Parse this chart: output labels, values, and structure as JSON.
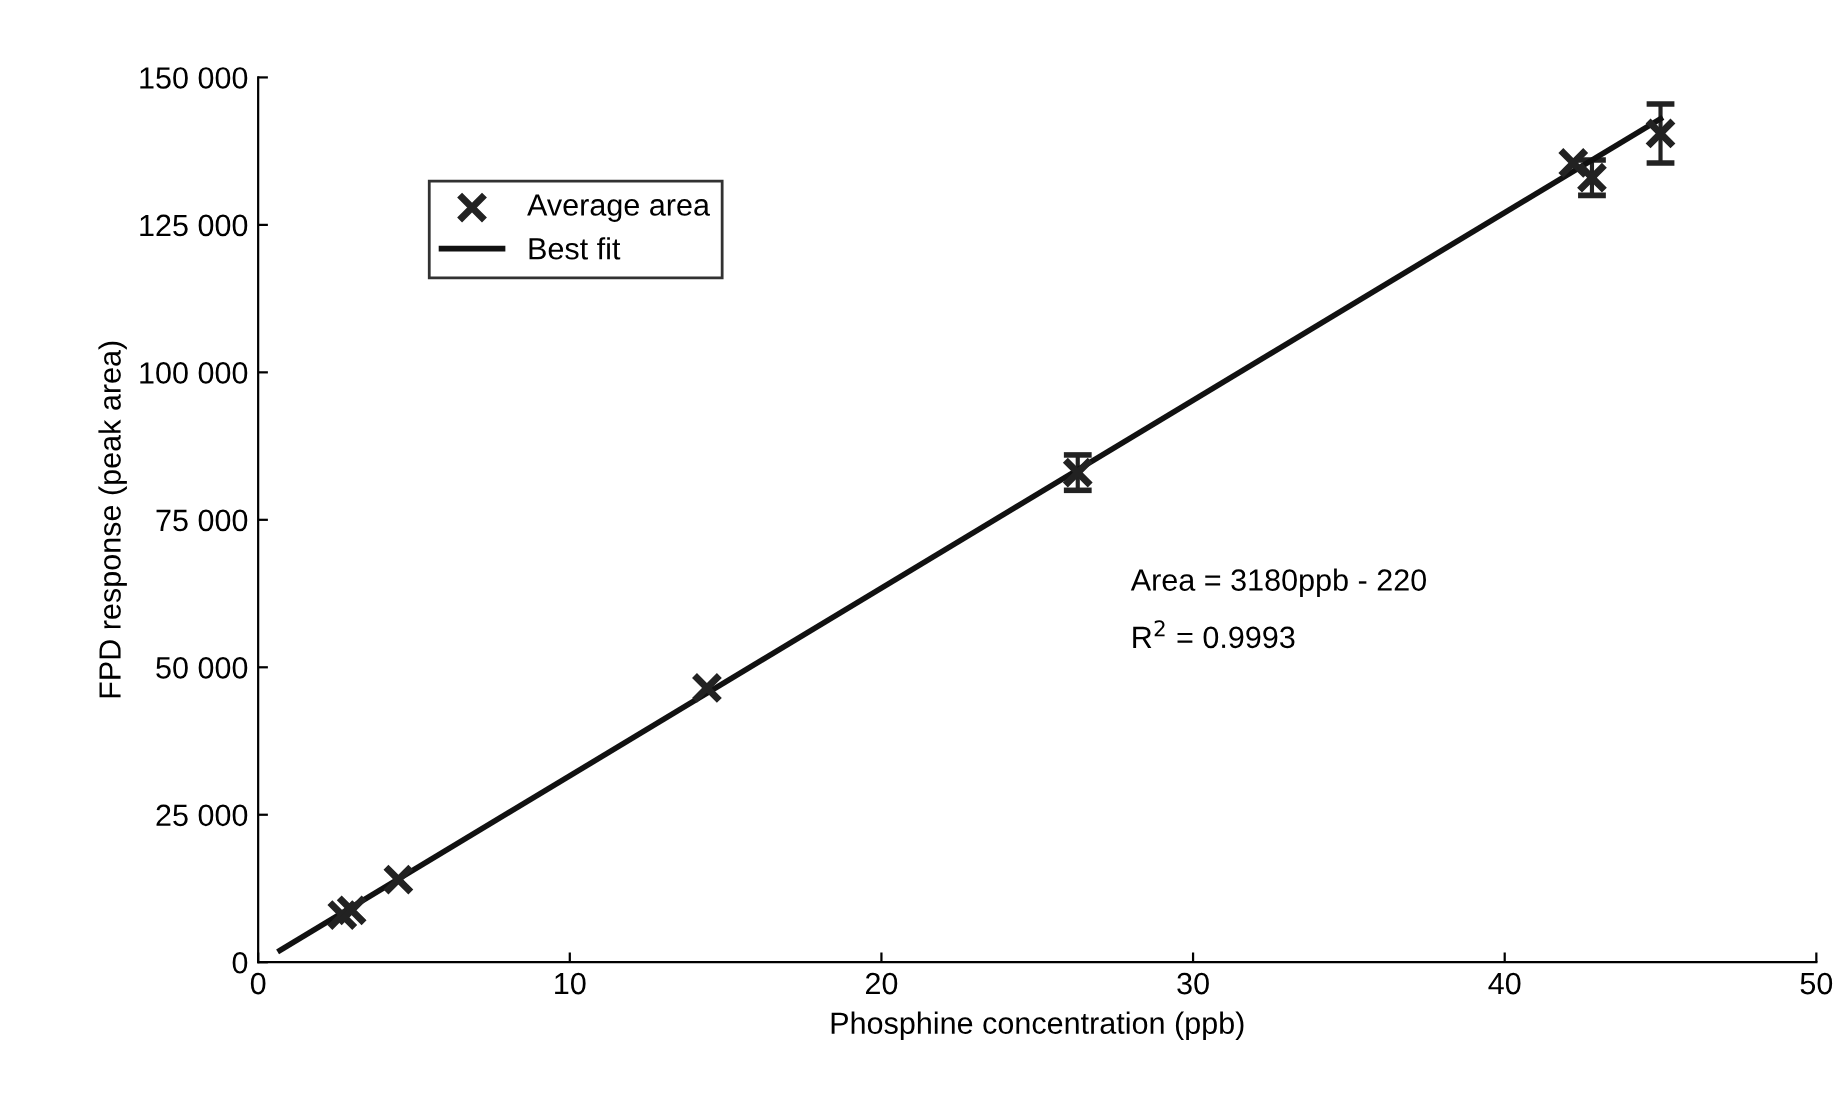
{
  "chart_data": {
    "type": "scatter",
    "xlabel": "Phosphine concentration (ppb)",
    "ylabel": "FPD response (peak area)",
    "xlim": [
      0,
      50
    ],
    "xticks": [
      0,
      10,
      20,
      30,
      40,
      50
    ],
    "ylim": [
      0,
      150000
    ],
    "yticks": [
      0,
      {
        "value": 25000,
        "label": "25 000"
      },
      {
        "value": 50000,
        "label": "50 000"
      },
      {
        "value": 75000,
        "label": "75 000"
      },
      {
        "value": 100000,
        "label": "100 000"
      },
      {
        "value": 125000,
        "label": "125 000"
      },
      {
        "value": 150000,
        "label": "150 000"
      }
    ],
    "series": [
      {
        "name": "Average area",
        "marker": "cross",
        "color": "#222222",
        "x": [
          2.7,
          3.0,
          4.5,
          14.4,
          26.3,
          42.2,
          42.8,
          45.0
        ],
        "values": [
          8000,
          8800,
          14000,
          46500,
          83000,
          135500,
          133000,
          140500
        ],
        "errors": [
          null,
          null,
          null,
          null,
          3000,
          null,
          3000,
          5000
        ]
      },
      {
        "name": "Best fit",
        "type": "line",
        "marker": "none",
        "color": "#111111",
        "x": [
          0.7,
          45.0
        ],
        "values": [
          2000,
          143000
        ]
      }
    ],
    "annotations": [
      "Area = 3180ppb - 220",
      "R$^{2}$ = 0.9993"
    ],
    "legend": "top left",
    "grid": false
  }
}
